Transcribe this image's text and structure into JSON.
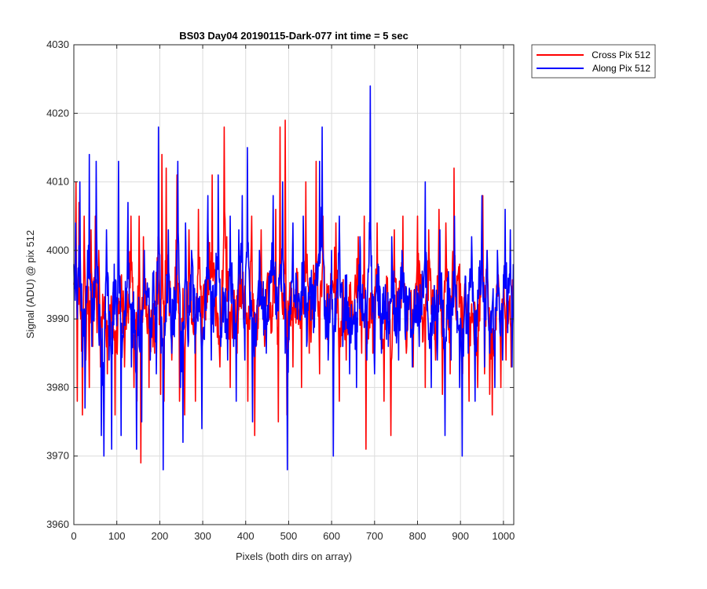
{
  "chart_data": {
    "type": "line",
    "title": "BS03 Day04 20190115-Dark-077 int time = 5 sec",
    "xlabel": "Pixels (both dirs on array)",
    "ylabel": "Signal (ADU) @ pix 512",
    "xlim": [
      0,
      1024
    ],
    "ylim": [
      3960,
      4030
    ],
    "xticks": [
      0,
      100,
      200,
      300,
      400,
      500,
      600,
      700,
      800,
      900,
      1000
    ],
    "yticks": [
      3960,
      3970,
      3980,
      3990,
      4000,
      4010,
      4020,
      4030
    ],
    "grid": true,
    "legend_position": "outside-top-right",
    "series": [
      {
        "name": "Cross Pix 512",
        "color": "#ff0000",
        "x_range": [
          0,
          1023
        ],
        "points": [
          [
            0,
            3995
          ],
          [
            5,
            4010
          ],
          [
            8,
            3978
          ],
          [
            12,
            4007
          ],
          [
            16,
            3990
          ],
          [
            20,
            3976
          ],
          [
            24,
            4005
          ],
          [
            28,
            3984
          ],
          [
            32,
            3998
          ],
          [
            36,
            3980
          ],
          [
            40,
            4003
          ],
          [
            44,
            3986
          ],
          [
            50,
            4005
          ],
          [
            54,
            3988
          ],
          [
            58,
            4000
          ],
          [
            62,
            3983
          ],
          [
            70,
            3990
          ],
          [
            78,
            3982
          ],
          [
            90,
            3988
          ],
          [
            96,
            3976
          ],
          [
            110,
            3996
          ],
          [
            118,
            3983
          ],
          [
            125,
            3991
          ],
          [
            133,
            4005
          ],
          [
            140,
            3980
          ],
          [
            147,
            3978
          ],
          [
            152,
            4005
          ],
          [
            156,
            3969
          ],
          [
            162,
            4002
          ],
          [
            175,
            3980
          ],
          [
            188,
            3985
          ],
          [
            196,
            4002
          ],
          [
            202,
            3979
          ],
          [
            205,
            4014
          ],
          [
            210,
            3978
          ],
          [
            215,
            4012
          ],
          [
            228,
            3984
          ],
          [
            234,
            3990
          ],
          [
            240,
            4011
          ],
          [
            246,
            3978
          ],
          [
            253,
            3989
          ],
          [
            258,
            3976
          ],
          [
            268,
            4003
          ],
          [
            276,
            3990
          ],
          [
            283,
            3978
          ],
          [
            290,
            4006
          ],
          [
            298,
            3984
          ],
          [
            304,
            3990
          ],
          [
            312,
            4003
          ],
          [
            322,
            4011
          ],
          [
            330,
            3989
          ],
          [
            340,
            3983
          ],
          [
            348,
            3999
          ],
          [
            350,
            4018
          ],
          [
            356,
            4002
          ],
          [
            364,
            3980
          ],
          [
            372,
            3993
          ],
          [
            380,
            3985
          ],
          [
            388,
            4000
          ],
          [
            396,
            3990
          ],
          [
            405,
            3978
          ],
          [
            414,
            4005
          ],
          [
            421,
            3973
          ],
          [
            428,
            3990
          ],
          [
            436,
            4003
          ],
          [
            444,
            3986
          ],
          [
            452,
            3994
          ],
          [
            460,
            3988
          ],
          [
            470,
            4006
          ],
          [
            476,
            3975
          ],
          [
            480,
            4018
          ],
          [
            488,
            3990
          ],
          [
            492,
            4019
          ],
          [
            496,
            3976
          ],
          [
            502,
            3993
          ],
          [
            510,
            3983
          ],
          [
            520,
            3995
          ],
          [
            530,
            3980
          ],
          [
            540,
            4010
          ],
          [
            548,
            3985
          ],
          [
            556,
            3990
          ],
          [
            564,
            4013
          ],
          [
            572,
            3982
          ],
          [
            580,
            4005
          ],
          [
            590,
            3987
          ],
          [
            600,
            3995
          ],
          [
            610,
            4004
          ],
          [
            618,
            3978
          ],
          [
            626,
            3992
          ],
          [
            634,
            3984
          ],
          [
            642,
            3995
          ],
          [
            652,
            3990
          ],
          [
            662,
            4002
          ],
          [
            670,
            3985
          ],
          [
            676,
            4005
          ],
          [
            680,
            3971
          ],
          [
            688,
            3993
          ],
          [
            696,
            3985
          ],
          [
            706,
            4004
          ],
          [
            714,
            3987
          ],
          [
            722,
            3978
          ],
          [
            730,
            3996
          ],
          [
            738,
            3973
          ],
          [
            746,
            4003
          ],
          [
            756,
            3990
          ],
          [
            766,
            4005
          ],
          [
            774,
            3985
          ],
          [
            782,
            3993
          ],
          [
            790,
            3983
          ],
          [
            800,
            4005
          ],
          [
            810,
            3990
          ],
          [
            818,
            3980
          ],
          [
            826,
            4003
          ],
          [
            834,
            3990
          ],
          [
            842,
            3984
          ],
          [
            850,
            4006
          ],
          [
            858,
            3979
          ],
          [
            866,
            4004
          ],
          [
            876,
            3982
          ],
          [
            885,
            4012
          ],
          [
            890,
            3990
          ],
          [
            898,
            3998
          ],
          [
            905,
            3982
          ],
          [
            912,
            3995
          ],
          [
            920,
            3978
          ],
          [
            928,
            3990
          ],
          [
            940,
            3980
          ],
          [
            952,
            4008
          ],
          [
            956,
            3982
          ],
          [
            962,
            4000
          ],
          [
            968,
            3979
          ],
          [
            974,
            3976
          ],
          [
            980,
            3984
          ],
          [
            986,
            3995
          ],
          [
            994,
            3980
          ],
          [
            1000,
            3995
          ],
          [
            1006,
            3984
          ],
          [
            1012,
            3990
          ],
          [
            1018,
            3983
          ],
          [
            1023,
            3995
          ]
        ]
      },
      {
        "name": "Along Pix 512",
        "color": "#0000ff",
        "x_range": [
          0,
          1023
        ],
        "points": [
          [
            0,
            3998
          ],
          [
            4,
            4004
          ],
          [
            8,
            3990
          ],
          [
            14,
            4010
          ],
          [
            20,
            3983
          ],
          [
            26,
            3977
          ],
          [
            32,
            4000
          ],
          [
            36,
            4014
          ],
          [
            42,
            3986
          ],
          [
            48,
            3993
          ],
          [
            52,
            4013
          ],
          [
            58,
            3988
          ],
          [
            64,
            3973
          ],
          [
            70,
            3970
          ],
          [
            76,
            4003
          ],
          [
            82,
            3984
          ],
          [
            88,
            3971
          ],
          [
            94,
            3998
          ],
          [
            100,
            3989
          ],
          [
            104,
            4013
          ],
          [
            110,
            3973
          ],
          [
            118,
            3990
          ],
          [
            126,
            4007
          ],
          [
            134,
            3983
          ],
          [
            140,
            3988
          ],
          [
            146,
            3971
          ],
          [
            152,
            3986
          ],
          [
            158,
            3975
          ],
          [
            164,
            4000
          ],
          [
            170,
            3992
          ],
          [
            178,
            3984
          ],
          [
            186,
            3997
          ],
          [
            192,
            3982
          ],
          [
            197,
            4018
          ],
          [
            203,
            3985
          ],
          [
            208,
            3968
          ],
          [
            214,
            3992
          ],
          [
            220,
            4003
          ],
          [
            228,
            3985
          ],
          [
            236,
            3990
          ],
          [
            242,
            4013
          ],
          [
            248,
            3980
          ],
          [
            254,
            3972
          ],
          [
            260,
            4004
          ],
          [
            266,
            3986
          ],
          [
            274,
            4000
          ],
          [
            282,
            3985
          ],
          [
            290,
            3993
          ],
          [
            298,
            3974
          ],
          [
            304,
            3987
          ],
          [
            312,
            4008
          ],
          [
            320,
            3984
          ],
          [
            328,
            3995
          ],
          [
            336,
            4011
          ],
          [
            342,
            3986
          ],
          [
            350,
            3993
          ],
          [
            358,
            3984
          ],
          [
            364,
            4005
          ],
          [
            372,
            3986
          ],
          [
            378,
            3978
          ],
          [
            384,
            4003
          ],
          [
            392,
            4008
          ],
          [
            398,
            3984
          ],
          [
            404,
            4015
          ],
          [
            410,
            3990
          ],
          [
            416,
            3975
          ],
          [
            424,
            3986
          ],
          [
            432,
            4000
          ],
          [
            440,
            3990
          ],
          [
            448,
            3985
          ],
          [
            456,
            3997
          ],
          [
            464,
            4008
          ],
          [
            472,
            3990
          ],
          [
            480,
            3996
          ],
          [
            486,
            4010
          ],
          [
            492,
            3985
          ],
          [
            497,
            3968
          ],
          [
            503,
            3990
          ],
          [
            510,
            4004
          ],
          [
            518,
            3996
          ],
          [
            526,
            3990
          ],
          [
            534,
            4005
          ],
          [
            542,
            3986
          ],
          [
            550,
            3996
          ],
          [
            558,
            3988
          ],
          [
            566,
            3998
          ],
          [
            572,
            4013
          ],
          [
            578,
            4018
          ],
          [
            584,
            3990
          ],
          [
            592,
            3984
          ],
          [
            600,
            4000
          ],
          [
            604,
            3970
          ],
          [
            610,
            3990
          ],
          [
            618,
            4005
          ],
          [
            626,
            3986
          ],
          [
            634,
            3994
          ],
          [
            642,
            3982
          ],
          [
            650,
            3990
          ],
          [
            658,
            3980
          ],
          [
            666,
            4002
          ],
          [
            674,
            3990
          ],
          [
            682,
            3984
          ],
          [
            690,
            4024
          ],
          [
            694,
            3990
          ],
          [
            700,
            3982
          ],
          [
            708,
            3998
          ],
          [
            716,
            3985
          ],
          [
            724,
            3990
          ],
          [
            732,
            3986
          ],
          [
            740,
            4002
          ],
          [
            748,
            3988
          ],
          [
            756,
            3984
          ],
          [
            764,
            4000
          ],
          [
            772,
            3987
          ],
          [
            780,
            3993
          ],
          [
            788,
            3983
          ],
          [
            796,
            3992
          ],
          [
            804,
            3986
          ],
          [
            812,
            3996
          ],
          [
            818,
            4010
          ],
          [
            826,
            3987
          ],
          [
            832,
            3980
          ],
          [
            840,
            3992
          ],
          [
            846,
            3984
          ],
          [
            852,
            4003
          ],
          [
            858,
            3990
          ],
          [
            864,
            3973
          ],
          [
            870,
            3996
          ],
          [
            878,
            3984
          ],
          [
            886,
            4005
          ],
          [
            892,
            3988
          ],
          [
            898,
            3980
          ],
          [
            904,
            3970
          ],
          [
            910,
            3993
          ],
          [
            918,
            3985
          ],
          [
            926,
            4002
          ],
          [
            934,
            3978
          ],
          [
            942,
            3993
          ],
          [
            950,
            4008
          ],
          [
            956,
            3983
          ],
          [
            962,
            4000
          ],
          [
            968,
            3985
          ],
          [
            974,
            3992
          ],
          [
            980,
            3980
          ],
          [
            986,
            4000
          ],
          [
            992,
            3988
          ],
          [
            998,
            3984
          ],
          [
            1004,
            4006
          ],
          [
            1010,
            3988
          ],
          [
            1016,
            4003
          ],
          [
            1020,
            3983
          ],
          [
            1023,
            3998
          ]
        ]
      }
    ]
  }
}
